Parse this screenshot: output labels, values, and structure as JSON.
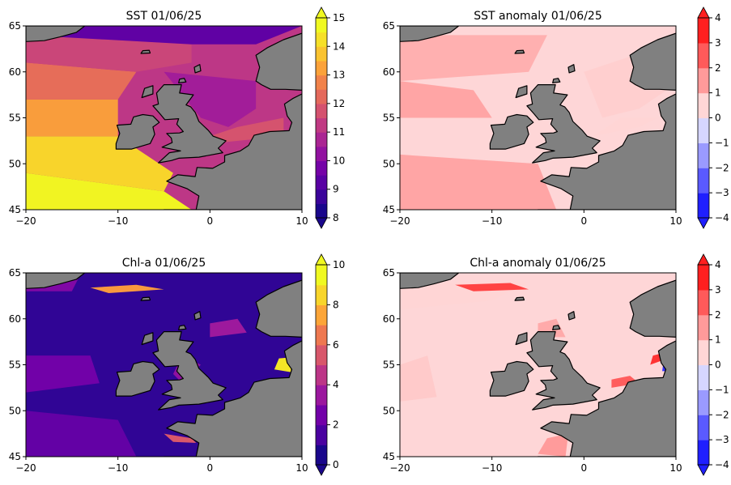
{
  "colors": {
    "land": "#808080",
    "coast": "#000000",
    "plasma": [
      "#1a078c",
      "#4a02a0",
      "#7201a8",
      "#9b179e",
      "#bc3587",
      "#d8576b",
      "#ee7850",
      "#fca538",
      "#f8d52b",
      "#f0f921"
    ],
    "anomaly": [
      "#1f1fff",
      "#5a5aff",
      "#9a9aff",
      "#d6d6ff",
      "#ffd6d6",
      "#ff9a9a",
      "#ff5a5a",
      "#ff1f1f"
    ]
  },
  "chart_data": [
    {
      "type": "heatmap",
      "title": "SST 01/06/25",
      "map": "plasma",
      "xticks": [
        -20,
        -10,
        0,
        10
      ],
      "yticks": [
        45,
        50,
        55,
        60,
        65
      ],
      "colorbar": {
        "ticks": [
          "8",
          "9",
          "10",
          "11",
          "12",
          "13",
          "14",
          "15"
        ],
        "vmin": 8,
        "vmax": 15,
        "extend": "both"
      },
      "zones": [
        {
          "poly": [
            [
              -20,
              45
            ],
            [
              -2,
              45
            ],
            [
              -5,
              47
            ],
            [
              -20,
              49
            ]
          ],
          "value": 14.9
        },
        {
          "poly": [
            [
              -20,
              49
            ],
            [
              -5,
              47
            ],
            [
              -4,
              49
            ],
            [
              -10,
              53
            ],
            [
              -20,
              53
            ]
          ],
          "value": 14.2
        },
        {
          "poly": [
            [
              -20,
              53
            ],
            [
              -10,
              53
            ],
            [
              -10,
              57
            ],
            [
              -20,
              57
            ]
          ],
          "value": 13.3
        },
        {
          "poly": [
            [
              -20,
              57
            ],
            [
              -10,
              57
            ],
            [
              -8,
              60
            ],
            [
              -20,
              61
            ]
          ],
          "value": 12.4
        },
        {
          "poly": [
            [
              -20,
              61
            ],
            [
              -8,
              60
            ],
            [
              -2,
              61
            ],
            [
              -2,
              63
            ],
            [
              -20,
              64
            ]
          ],
          "value": 11.5
        },
        {
          "poly": [
            [
              -5,
              60
            ],
            [
              5,
              59
            ],
            [
              5,
              56
            ],
            [
              2,
              54
            ],
            [
              -1,
              55
            ]
          ],
          "value": 10.5
        },
        {
          "poly": [
            [
              -20,
              64
            ],
            [
              -2,
              63
            ],
            [
              5,
              63
            ],
            [
              10,
              65
            ],
            [
              -20,
              65
            ]
          ],
          "value": 9.2
        },
        {
          "poly": [
            [
              -2,
              52
            ],
            [
              8,
              53
            ],
            [
              8,
              55
            ],
            [
              3,
              54
            ],
            [
              0,
              53
            ]
          ],
          "value": 11.8
        }
      ]
    },
    {
      "type": "heatmap",
      "title": "SST anomaly 01/06/25",
      "map": "anomaly",
      "xticks": [
        -20,
        -10,
        0,
        10
      ],
      "yticks": [
        45,
        50,
        55,
        60,
        65
      ],
      "colorbar": {
        "ticks": [
          "-4",
          "-3",
          "-2",
          "-1",
          "0",
          "1",
          "2",
          "3",
          "4"
        ],
        "vmin": -4,
        "vmax": 4,
        "extend": "both"
      },
      "zones": [
        {
          "poly": [
            [
              -20,
              45
            ],
            [
              -3,
              45
            ],
            [
              -5,
              50
            ],
            [
              -20,
              51
            ]
          ],
          "value": 1.5
        },
        {
          "poly": [
            [
              -20,
              55
            ],
            [
              -10,
              55
            ],
            [
              -12,
              58
            ],
            [
              -20,
              59
            ]
          ],
          "value": 1.5
        },
        {
          "poly": [
            [
              -20,
              59
            ],
            [
              -6,
              60
            ],
            [
              -4,
              64
            ],
            [
              -20,
              64
            ]
          ],
          "value": 1.3
        },
        {
          "poly": [
            [
              2,
              55
            ],
            [
              6,
              56
            ],
            [
              9,
              58
            ],
            [
              6,
              62
            ],
            [
              0,
              60
            ]
          ],
          "value": 0.7
        },
        {
          "poly": [
            [
              1,
              53
            ],
            [
              6,
              54
            ],
            [
              8,
              55
            ],
            [
              4,
              55
            ]
          ],
          "value": 0.6
        }
      ]
    },
    {
      "type": "heatmap",
      "title": "Chl-a 01/06/25",
      "map": "plasma",
      "xticks": [
        -20,
        -10,
        0,
        10
      ],
      "yticks": [
        45,
        50,
        55,
        60,
        65
      ],
      "colorbar": {
        "ticks": [
          "0",
          "2",
          "4",
          "6",
          "8",
          "10"
        ],
        "vmin": 0,
        "vmax": 10,
        "extend": "both"
      },
      "zones": [
        {
          "poly": [
            [
              -13,
              63.4
            ],
            [
              -8,
              63.7
            ],
            [
              -5,
              63.2
            ],
            [
              -11,
              62.8
            ]
          ],
          "value": 7.5
        },
        {
          "poly": [
            [
              7,
              54.5
            ],
            [
              8.8,
              54.2
            ],
            [
              8.8,
              55.8
            ],
            [
              7.5,
              55.7
            ]
          ],
          "value": 9.4
        },
        {
          "poly": [
            [
              -20,
              52
            ],
            [
              -12,
              53
            ],
            [
              -13,
              56
            ],
            [
              -20,
              56
            ]
          ],
          "value": 2.2
        },
        {
          "poly": [
            [
              0,
              58
            ],
            [
              4,
              58.5
            ],
            [
              3,
              60
            ],
            [
              0,
              59.5
            ]
          ],
          "value": 3.4
        },
        {
          "poly": [
            [
              -4,
              54
            ],
            [
              -3,
              53
            ],
            [
              -1,
              55
            ],
            [
              -3,
              56
            ]
          ],
          "value": 3.0
        },
        {
          "poly": [
            [
              -20,
              63
            ],
            [
              -15,
              63
            ],
            [
              -14,
              65
            ],
            [
              -20,
              65
            ]
          ],
          "value": 2.6
        },
        {
          "poly": [
            [
              -20,
              45
            ],
            [
              -8,
              45
            ],
            [
              -10,
              49
            ],
            [
              -20,
              50
            ]
          ],
          "value": 1.8
        },
        {
          "poly": [
            [
              -5,
              47.5
            ],
            [
              -2,
              47
            ],
            [
              -1.5,
              46.5
            ],
            [
              -4,
              46.6
            ]
          ],
          "value": 5.6
        }
      ]
    },
    {
      "type": "heatmap",
      "title": "Chl-a anomaly 01/06/25",
      "map": "anomaly",
      "xticks": [
        -20,
        -10,
        0,
        10
      ],
      "yticks": [
        45,
        50,
        55,
        60,
        65
      ],
      "colorbar": {
        "ticks": [
          "-4",
          "-3",
          "-2",
          "-1",
          "0",
          "1",
          "2",
          "3",
          "4"
        ],
        "vmin": -4,
        "vmax": 4,
        "extend": "both"
      },
      "zones": [
        {
          "poly": [
            [
              -20,
              61
            ],
            [
              -10,
              62
            ],
            [
              -6,
              64
            ],
            [
              -20,
              64
            ]
          ],
          "value": 0.6
        },
        {
          "poly": [
            [
              -14,
              63.7
            ],
            [
              -8,
              63.9
            ],
            [
              -6,
              63.2
            ],
            [
              -12,
              63.0
            ]
          ],
          "value": 3.3
        },
        {
          "poly": [
            [
              -20,
              51
            ],
            [
              -16,
              51.5
            ],
            [
              -17,
              56
            ],
            [
              -20,
              55
            ]
          ],
          "value": 0.8
        },
        {
          "poly": [
            [
              -5,
              58
            ],
            [
              -2,
              58
            ],
            [
              -3,
              60
            ],
            [
              -5,
              59.5
            ]
          ],
          "value": 1.4
        },
        {
          "poly": [
            [
              3,
              52.5
            ],
            [
              6,
              53
            ],
            [
              5,
              53.8
            ],
            [
              3,
              53.4
            ]
          ],
          "value": 2.8
        },
        {
          "poly": [
            [
              7.2,
              55
            ],
            [
              8.6,
              55.5
            ],
            [
              8.7,
              56.3
            ],
            [
              7.5,
              56
            ]
          ],
          "value": 3.6
        },
        {
          "poly": [
            [
              8.5,
              54.3
            ],
            [
              9,
              54.3
            ],
            [
              9,
              55
            ],
            [
              8.6,
              55
            ]
          ],
          "value": -3.6
        },
        {
          "poly": [
            [
              -5,
              45.3
            ],
            [
              -2,
              45
            ],
            [
              -1.7,
              47.5
            ],
            [
              -4,
              47
            ]
          ],
          "value": 1.7
        }
      ]
    }
  ]
}
